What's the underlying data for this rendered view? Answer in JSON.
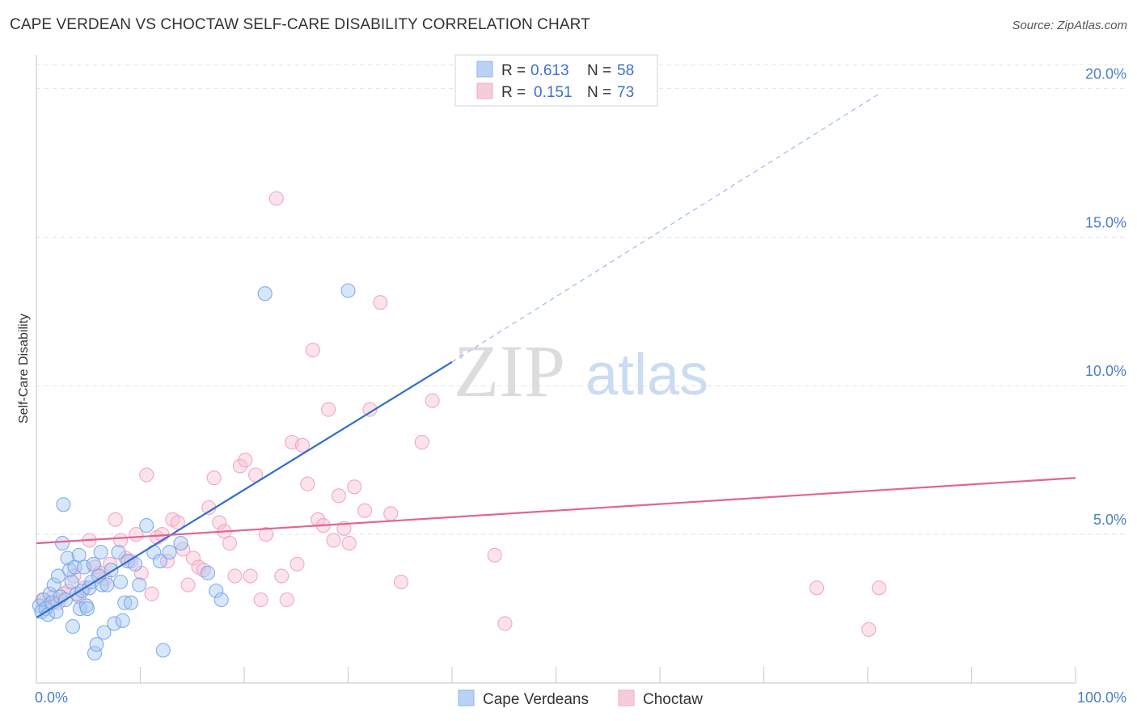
{
  "title": "CAPE VERDEAN VS CHOCTAW SELF-CARE DISABILITY CORRELATION CHART",
  "source": "Source: ZipAtlas.com",
  "watermark": {
    "zip": "ZIP",
    "atlas": "atlas"
  },
  "legend": {
    "rows": [
      {
        "r_label": "R =",
        "r_value": "0.613",
        "n_label": "N =",
        "n_value": "58",
        "color": "#6fa1e8"
      },
      {
        "r_label": "R =",
        "r_value": "0.151",
        "n_label": "N =",
        "n_value": "73",
        "color": "#f09ab6"
      }
    ]
  },
  "chart_data": {
    "type": "scatter",
    "title": "CAPE VERDEAN VS CHOCTAW SELF-CARE DISABILITY CORRELATION CHART",
    "xlabel": "",
    "ylabel": "Self-Care Disability",
    "x_tick_labels": [
      "0.0%",
      "100.0%"
    ],
    "y_tick_labels": [
      "5.0%",
      "10.0%",
      "15.0%",
      "20.0%"
    ],
    "y_ticks": [
      5,
      10,
      15,
      20
    ],
    "xlim": [
      0,
      100
    ],
    "ylim": [
      0,
      20.8
    ],
    "grid": true,
    "legend_position": "top-center",
    "series": [
      {
        "name": "Cape Verdeans",
        "color": "#6fa1e8",
        "fill": "#a9c8f2",
        "trend": {
          "x0": 0,
          "y0": 2.2,
          "x1": 40,
          "y1": 10.8,
          "dashed_to_x": 81,
          "dashed_to_y": 19.8
        },
        "points": [
          [
            0.3,
            2.6
          ],
          [
            0.5,
            2.4
          ],
          [
            0.7,
            2.8
          ],
          [
            0.9,
            2.5
          ],
          [
            1.1,
            2.3
          ],
          [
            1.3,
            3.0
          ],
          [
            1.5,
            2.7
          ],
          [
            1.7,
            3.3
          ],
          [
            1.9,
            2.4
          ],
          [
            2.1,
            3.6
          ],
          [
            2.3,
            2.9
          ],
          [
            2.5,
            4.7
          ],
          [
            2.6,
            6.0
          ],
          [
            2.8,
            2.8
          ],
          [
            3.0,
            4.2
          ],
          [
            3.2,
            3.8
          ],
          [
            3.4,
            3.4
          ],
          [
            3.5,
            1.9
          ],
          [
            3.7,
            3.9
          ],
          [
            3.9,
            3.0
          ],
          [
            4.1,
            4.3
          ],
          [
            4.2,
            2.5
          ],
          [
            4.4,
            3.1
          ],
          [
            4.6,
            3.9
          ],
          [
            4.8,
            2.6
          ],
          [
            4.9,
            2.5
          ],
          [
            5.1,
            3.2
          ],
          [
            5.3,
            3.4
          ],
          [
            5.5,
            4.0
          ],
          [
            5.6,
            1.0
          ],
          [
            5.8,
            1.3
          ],
          [
            6.0,
            3.6
          ],
          [
            6.2,
            4.4
          ],
          [
            6.3,
            3.3
          ],
          [
            6.5,
            1.7
          ],
          [
            6.8,
            3.3
          ],
          [
            7.2,
            3.8
          ],
          [
            7.5,
            2.0
          ],
          [
            7.9,
            4.4
          ],
          [
            8.1,
            3.4
          ],
          [
            8.3,
            2.1
          ],
          [
            8.5,
            2.7
          ],
          [
            8.8,
            4.1
          ],
          [
            9.1,
            2.7
          ],
          [
            9.5,
            4.0
          ],
          [
            9.9,
            3.3
          ],
          [
            10.6,
            5.3
          ],
          [
            11.3,
            4.4
          ],
          [
            11.9,
            4.1
          ],
          [
            12.2,
            1.1
          ],
          [
            12.8,
            4.4
          ],
          [
            13.9,
            4.7
          ],
          [
            16.5,
            3.7
          ],
          [
            17.3,
            3.1
          ],
          [
            17.8,
            2.8
          ],
          [
            22.0,
            13.1
          ],
          [
            30.0,
            13.2
          ]
        ]
      },
      {
        "name": "Choctaw",
        "color": "#f09ab6",
        "fill": "#f6c0d2",
        "trend": {
          "x0": 0,
          "y0": 4.7,
          "x1": 100,
          "y1": 6.9
        },
        "points": [
          [
            0.6,
            2.8
          ],
          [
            1.1,
            2.6
          ],
          [
            1.6,
            2.9
          ],
          [
            2.1,
            2.7
          ],
          [
            2.6,
            3.0
          ],
          [
            3.1,
            3.1
          ],
          [
            3.6,
            3.6
          ],
          [
            4.1,
            2.9
          ],
          [
            4.6,
            3.2
          ],
          [
            5.1,
            4.8
          ],
          [
            5.6,
            3.9
          ],
          [
            6.1,
            3.7
          ],
          [
            6.6,
            3.5
          ],
          [
            7.1,
            4.0
          ],
          [
            7.6,
            5.5
          ],
          [
            8.1,
            4.8
          ],
          [
            8.6,
            4.2
          ],
          [
            9.1,
            4.1
          ],
          [
            9.6,
            5.0
          ],
          [
            10.1,
            3.7
          ],
          [
            10.6,
            7.0
          ],
          [
            11.1,
            3.0
          ],
          [
            11.6,
            4.9
          ],
          [
            12.1,
            5.0
          ],
          [
            12.6,
            4.1
          ],
          [
            13.1,
            5.5
          ],
          [
            13.6,
            5.4
          ],
          [
            14.1,
            4.5
          ],
          [
            14.6,
            3.3
          ],
          [
            15.1,
            4.2
          ],
          [
            15.6,
            3.9
          ],
          [
            16.1,
            3.8
          ],
          [
            16.6,
            5.9
          ],
          [
            17.1,
            6.9
          ],
          [
            17.6,
            5.4
          ],
          [
            18.1,
            5.1
          ],
          [
            18.6,
            4.7
          ],
          [
            19.1,
            3.6
          ],
          [
            19.6,
            7.3
          ],
          [
            20.1,
            7.5
          ],
          [
            20.6,
            3.6
          ],
          [
            21.1,
            7.0
          ],
          [
            21.6,
            2.8
          ],
          [
            22.1,
            5.0
          ],
          [
            23.1,
            16.3
          ],
          [
            23.6,
            3.6
          ],
          [
            24.1,
            2.8
          ],
          [
            24.6,
            8.1
          ],
          [
            25.1,
            4.0
          ],
          [
            25.6,
            8.0
          ],
          [
            26.1,
            6.7
          ],
          [
            26.6,
            11.2
          ],
          [
            27.1,
            5.5
          ],
          [
            27.6,
            5.3
          ],
          [
            28.1,
            9.2
          ],
          [
            28.6,
            4.8
          ],
          [
            29.1,
            6.3
          ],
          [
            29.6,
            5.2
          ],
          [
            30.1,
            4.7
          ],
          [
            30.6,
            6.6
          ],
          [
            31.6,
            5.8
          ],
          [
            32.1,
            9.2
          ],
          [
            33.1,
            12.8
          ],
          [
            34.1,
            5.7
          ],
          [
            35.1,
            3.4
          ],
          [
            37.1,
            8.1
          ],
          [
            38.1,
            9.5
          ],
          [
            44.1,
            4.3
          ],
          [
            45.1,
            2.0
          ],
          [
            75.1,
            3.2
          ],
          [
            80.1,
            1.8
          ],
          [
            81.1,
            3.2
          ]
        ]
      }
    ]
  }
}
